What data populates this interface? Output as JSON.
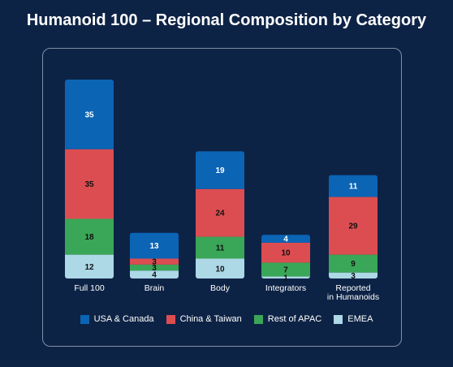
{
  "title": "Humanoid 100 – Regional Composition by Category",
  "chart_data": {
    "type": "bar",
    "stacked": true,
    "categories": [
      "Full 100",
      "Brain",
      "Body",
      "Integrators",
      "Reported\nin Humanoids"
    ],
    "series": [
      {
        "name": "USA & Canada",
        "color": "#0b64b4",
        "label_color": "#ffffff",
        "values": [
          35,
          13,
          19,
          4,
          11
        ]
      },
      {
        "name": "China & Taiwan",
        "color": "#dc4d51",
        "label_color": "#111111",
        "values": [
          35,
          3,
          24,
          10,
          29
        ]
      },
      {
        "name": "Rest of APAC",
        "color": "#3aa657",
        "label_color": "#111111",
        "values": [
          18,
          3,
          11,
          7,
          9
        ]
      },
      {
        "name": "EMEA",
        "color": "#add8e6",
        "label_color": "#111111",
        "values": [
          12,
          4,
          10,
          1,
          3
        ]
      }
    ],
    "legend_position": "bottom",
    "grid": false
  }
}
